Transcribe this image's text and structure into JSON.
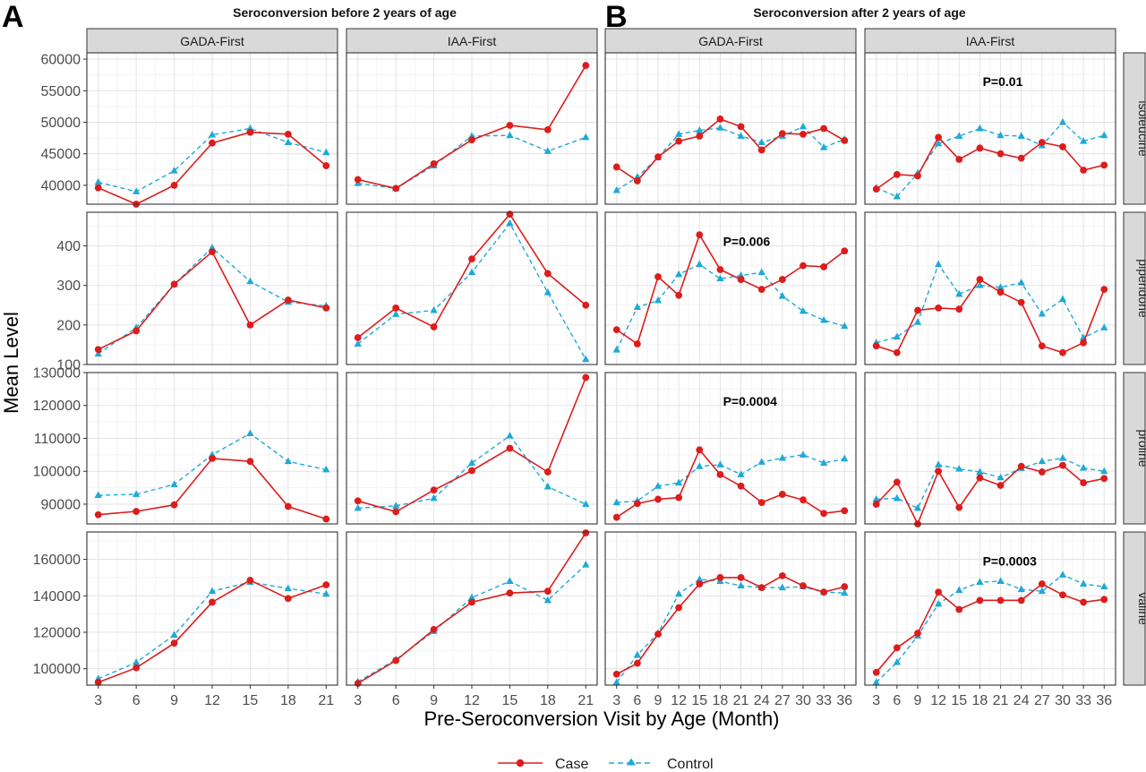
{
  "chart_data": {
    "type": "line",
    "panel_labels": [
      "A",
      "B"
    ],
    "section_titles": [
      "Seroconversion before 2 years of age",
      "Seroconversion after 2 years of age"
    ],
    "column_facets": [
      "GADA-First",
      "IAA-First",
      "GADA-First",
      "IAA-First"
    ],
    "row_facets": [
      "isoleucine",
      "piperidone",
      "proline",
      "valine"
    ],
    "xlabel": "Pre-Seroconversion Visit by Age (Month)",
    "ylabel": "Mean Level",
    "legend": {
      "case": "Case",
      "control": "Control",
      "colors": {
        "case": "#dd1c1c",
        "control": "#1ea9d6"
      }
    },
    "x_before": [
      3,
      6,
      9,
      12,
      15,
      18,
      21
    ],
    "x_after": [
      3,
      6,
      9,
      12,
      15,
      18,
      21,
      24,
      27,
      30,
      33,
      36
    ],
    "rows": [
      {
        "ylim": [
          37000,
          61000
        ],
        "yticks": [
          40000,
          45000,
          50000,
          55000,
          60000
        ],
        "ytick_labels": [
          "40000",
          "45000",
          "50000",
          "55000",
          "60000"
        ],
        "panels": [
          {
            "case": [
              39600,
              37000,
              40000,
              46700,
              48400,
              48100,
              43100
            ],
            "control": [
              40500,
              39000,
              42300,
              48000,
              49000,
              46800,
              45200
            ],
            "p": ""
          },
          {
            "case": [
              40900,
              39500,
              43400,
              47200,
              49500,
              48800,
              59000
            ],
            "control": [
              40300,
              39500,
              43100,
              47800,
              47900,
              45400,
              47600
            ],
            "p": ""
          },
          {
            "case": [
              42900,
              40700,
              44500,
              47000,
              47800,
              50500,
              49300,
              45600,
              48200,
              48100,
              49000,
              47100
            ],
            "control": [
              39200,
              41300,
              44400,
              48100,
              48700,
              49100,
              47800,
              46800,
              47800,
              49300,
              46000,
              47300
            ],
            "p": ""
          },
          {
            "case": [
              39400,
              41700,
              41500,
              47600,
              44100,
              45900,
              45000,
              44300,
              46800,
              46100,
              42400,
              43200
            ],
            "control": [
              39600,
              38200,
              41900,
              46600,
              47800,
              49000,
              47900,
              47800,
              46300,
              50000,
              47000,
              47900
            ],
            "p": "P=0.01"
          }
        ]
      },
      {
        "ylim": [
          100,
          485
        ],
        "yticks": [
          100,
          200,
          300,
          400
        ],
        "ytick_labels": [
          "100",
          "200",
          "300",
          "400"
        ],
        "panels": [
          {
            "case": [
              138,
              185,
              303,
              385,
              200,
              263,
              243
            ],
            "control": [
              127,
              193,
              303,
              395,
              310,
              258,
              248
            ],
            "p": ""
          },
          {
            "case": [
              168,
              243,
              195,
              367,
              480,
              330,
              250
            ],
            "control": [
              152,
              227,
              237,
              333,
              457,
              282,
              113
            ],
            "p": ""
          },
          {
            "case": [
              188,
              152,
              322,
              275,
              428,
              340,
              315,
              290,
              315,
              350,
              347,
              387
            ],
            "control": [
              137,
              245,
              262,
              328,
              353,
              317,
              325,
              333,
              273,
              235,
              212,
              197
            ],
            "p": "P=0.006"
          },
          {
            "case": [
              147,
              130,
              237,
              243,
              240,
              315,
              283,
              257,
              147,
              130,
              155,
              290
            ],
            "control": [
              155,
              170,
              207,
              353,
              278,
              300,
              295,
              307,
              228,
              265,
              168,
              193
            ],
            "p": ""
          }
        ]
      },
      {
        "ylim": [
          84000,
          130000
        ],
        "yticks": [
          90000,
          100000,
          110000,
          120000,
          130000
        ],
        "ytick_labels": [
          "90000",
          "100000",
          "110000",
          "120000",
          "130000"
        ],
        "panels": [
          {
            "case": [
              86800,
              87800,
              89800,
              103900,
              103000,
              89300,
              85500
            ],
            "control": [
              92700,
              93000,
              96000,
              105000,
              111500,
              103000,
              100500
            ],
            "p": ""
          },
          {
            "case": [
              91000,
              87700,
              94300,
              100200,
              107000,
              99800,
              128500
            ],
            "control": [
              88800,
              89500,
              91800,
              102500,
              110800,
              95300,
              90000
            ],
            "p": ""
          },
          {
            "case": [
              86000,
              90200,
              91500,
              92000,
              106500,
              99000,
              95500,
              90500,
              93000,
              91300,
              87200,
              88000
            ],
            "control": [
              90500,
              91000,
              95500,
              96500,
              101500,
              102000,
              99000,
              102800,
              104000,
              105000,
              102500,
              103800
            ],
            "p": "P=0.0004"
          },
          {
            "case": [
              90000,
              96700,
              84000,
              100000,
              89000,
              98000,
              95700,
              101500,
              99800,
              101800,
              96500,
              97800
            ],
            "control": [
              91500,
              91800,
              88800,
              102000,
              100700,
              99800,
              98100,
              100900,
              103000,
              104000,
              101000,
              100000
            ],
            "p": ""
          }
        ]
      },
      {
        "ylim": [
          91000,
          175000
        ],
        "yticks": [
          100000,
          120000,
          140000,
          160000
        ],
        "ytick_labels": [
          "100000",
          "120000",
          "140000",
          "160000"
        ],
        "panels": [
          {
            "case": [
              92500,
              100500,
              114000,
              136500,
              148500,
              138500,
              146000
            ],
            "control": [
              94500,
              103500,
              118500,
              142500,
              147500,
              144000,
              141000
            ],
            "p": ""
          },
          {
            "case": [
              92000,
              104500,
              121500,
              136500,
              141500,
              142500,
              174500
            ],
            "control": [
              92800,
              105000,
              120500,
              139000,
              148000,
              137500,
              157000
            ],
            "p": ""
          },
          {
            "case": [
              97000,
              103000,
              119000,
              133500,
              146500,
              150000,
              150000,
              144500,
              151000,
              145500,
              142000,
              145000
            ],
            "control": [
              92500,
              107500,
              119500,
              141000,
              149000,
              148000,
              145500,
              144500,
              144500,
              145000,
              142000,
              141500
            ],
            "p": ""
          },
          {
            "case": [
              98000,
              111500,
              119500,
              142000,
              132500,
              137500,
              137500,
              137500,
              146500,
              140500,
              136500,
              138000
            ],
            "control": [
              92500,
              103500,
              118000,
              135500,
              143000,
              147500,
              148000,
              143500,
              142500,
              151500,
              146500,
              145000
            ],
            "p": "P=0.0003"
          }
        ]
      }
    ]
  }
}
